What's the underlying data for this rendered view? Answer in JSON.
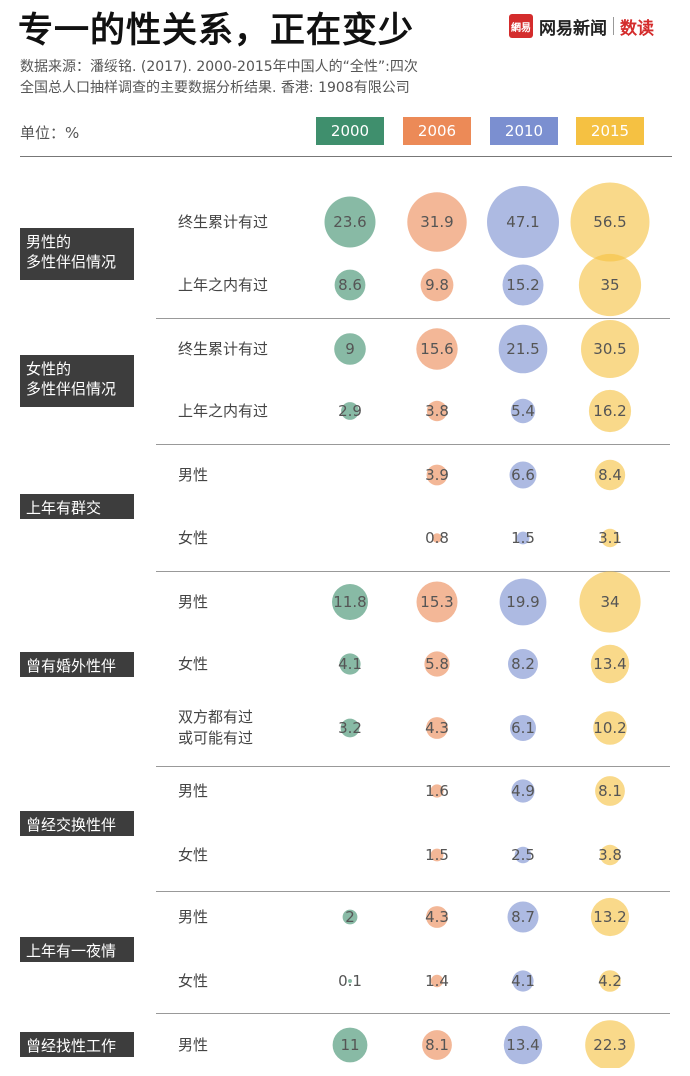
{
  "header": {
    "title": "专一的性关系，正在变少",
    "brand_logo": "網易",
    "brand_name": "网易新闻",
    "brand_sub": "数读"
  },
  "source": {
    "line1": "数据来源：潘绥铭. (2017). 2000-2015年中国人的“全性”:四次",
    "line2": "全国总人口抽样调查的主要数据分析结果. 香港: 1908有限公司"
  },
  "unit_label": "单位：%",
  "colors": {
    "2000": "#3f8f6d",
    "2006": "#ec8a57",
    "2010": "#7b8fd0",
    "2015": "#f5c142"
  },
  "chart_data": {
    "type": "bubble-table",
    "title": "专一的性关系，正在变少",
    "unit": "%",
    "years": [
      "2000",
      "2006",
      "2010",
      "2015"
    ],
    "groups": [
      {
        "label": "男性的\n多性伴侣情况",
        "rows": [
          {
            "label": "终生累计有过",
            "values": [
              23.6,
              31.9,
              47.1,
              56.5
            ]
          },
          {
            "label": "上年之内有过",
            "values": [
              8.6,
              9.8,
              15.2,
              35
            ]
          }
        ]
      },
      {
        "label": "女性的\n多性伴侣情况",
        "rows": [
          {
            "label": "终生累计有过",
            "values": [
              9,
              15.6,
              21.5,
              30.5
            ]
          },
          {
            "label": "上年之内有过",
            "values": [
              2.9,
              3.8,
              5.4,
              16.2
            ]
          }
        ]
      },
      {
        "label": "上年有群交",
        "rows": [
          {
            "label": "男性",
            "values": [
              null,
              3.9,
              6.6,
              8.4
            ]
          },
          {
            "label": "女性",
            "values": [
              null,
              0.8,
              1.5,
              3.1
            ]
          }
        ]
      },
      {
        "label": "曾有婚外性伴侣",
        "rows": [
          {
            "label": "男性",
            "values": [
              11.8,
              15.3,
              19.9,
              34
            ]
          },
          {
            "label": "女性",
            "values": [
              4.1,
              5.8,
              8.2,
              13.4
            ]
          },
          {
            "label": "双方都有过\n或可能有过",
            "values": [
              3.2,
              4.3,
              6.1,
              10.2
            ]
          }
        ]
      },
      {
        "label": "曾经交换性伴侣",
        "rows": [
          {
            "label": "男性",
            "values": [
              null,
              1.6,
              4.9,
              8.1
            ]
          },
          {
            "label": "女性",
            "values": [
              null,
              1.5,
              2.5,
              3.8
            ]
          }
        ]
      },
      {
        "label": "上年有一夜情",
        "rows": [
          {
            "label": "男性",
            "values": [
              2,
              4.3,
              8.7,
              13.2
            ]
          },
          {
            "label": "女性",
            "values": [
              0.1,
              1.4,
              4.1,
              4.2
            ]
          }
        ]
      },
      {
        "label": "曾经找性工作者",
        "rows": [
          {
            "label": "男性",
            "values": [
              11,
              8.1,
              13.4,
              22.3
            ]
          }
        ]
      }
    ]
  }
}
